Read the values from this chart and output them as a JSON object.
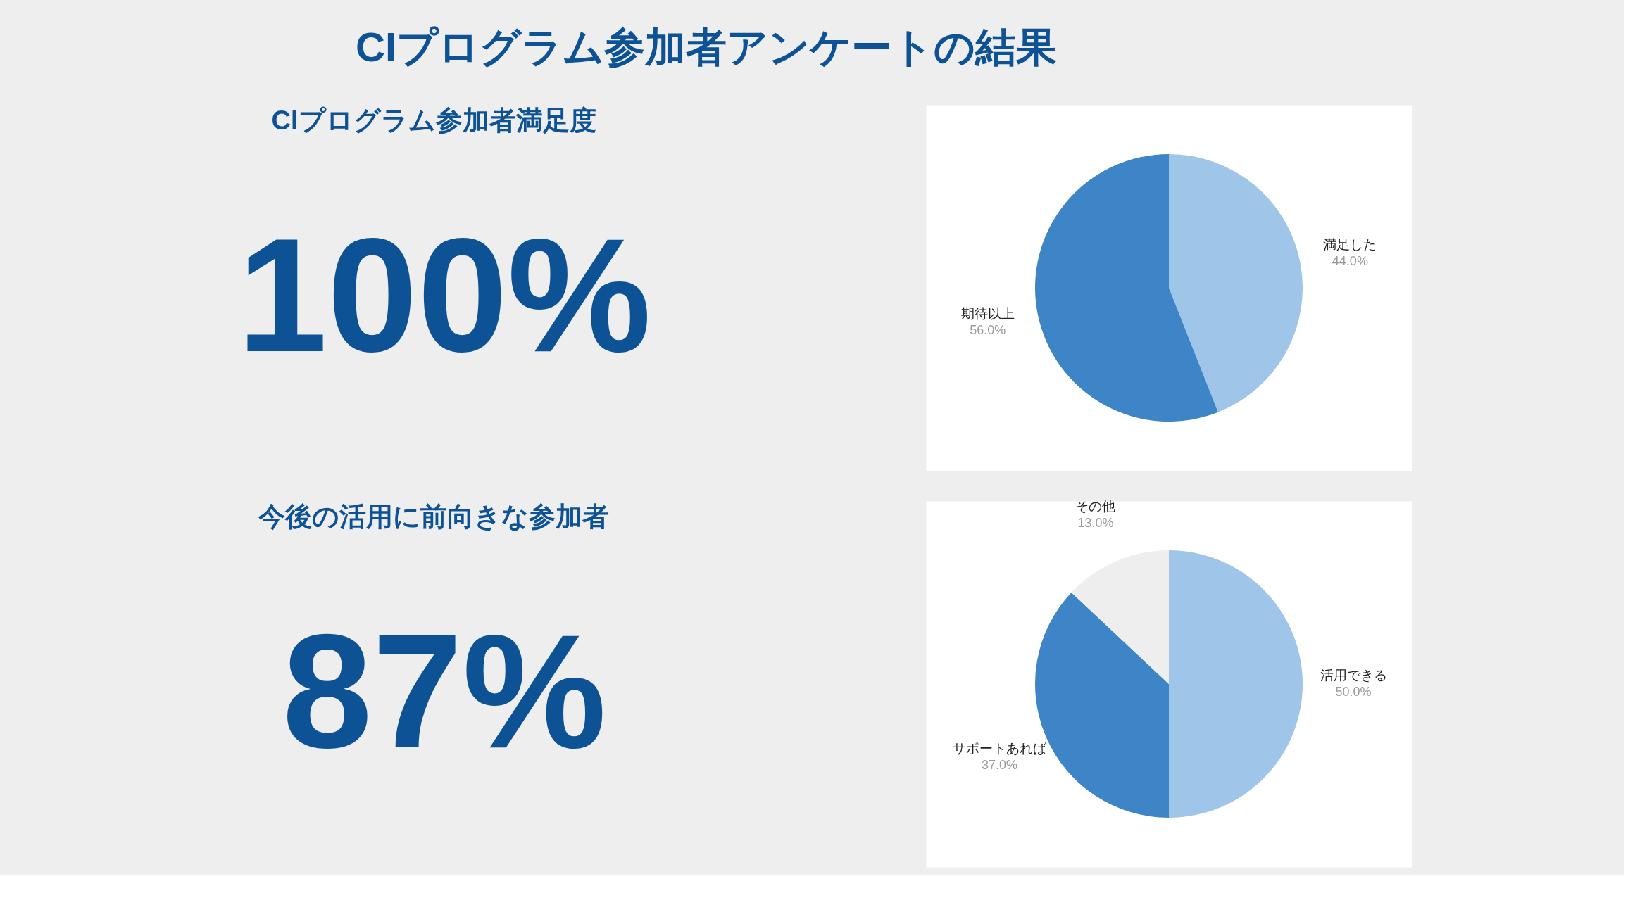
{
  "chart_data": [
    {
      "type": "other",
      "title": "CIプログラム参加者アンケートの結果",
      "annotations": [
        "CIプログラム参加者満足度",
        "100%"
      ]
    },
    {
      "type": "pie",
      "categories": [
        "満足した",
        "期待以上"
      ],
      "values": [
        44,
        56
      ],
      "colors": [
        "#9fc5e8",
        "#3d85c6"
      ],
      "value_labels": [
        "44.0%",
        "56.0%"
      ]
    },
    {
      "type": "other",
      "annotations": [
        "今後の活用に前向きな参加者",
        "87%"
      ]
    },
    {
      "type": "pie",
      "categories": [
        "活用できる",
        "サポートあれば",
        "その他"
      ],
      "values": [
        50,
        37,
        13
      ],
      "colors": [
        "#9fc5e8",
        "#3d85c6",
        "#eeeeee"
      ],
      "value_labels": [
        "50.0%",
        "37.0%",
        "13.0%"
      ]
    }
  ]
}
